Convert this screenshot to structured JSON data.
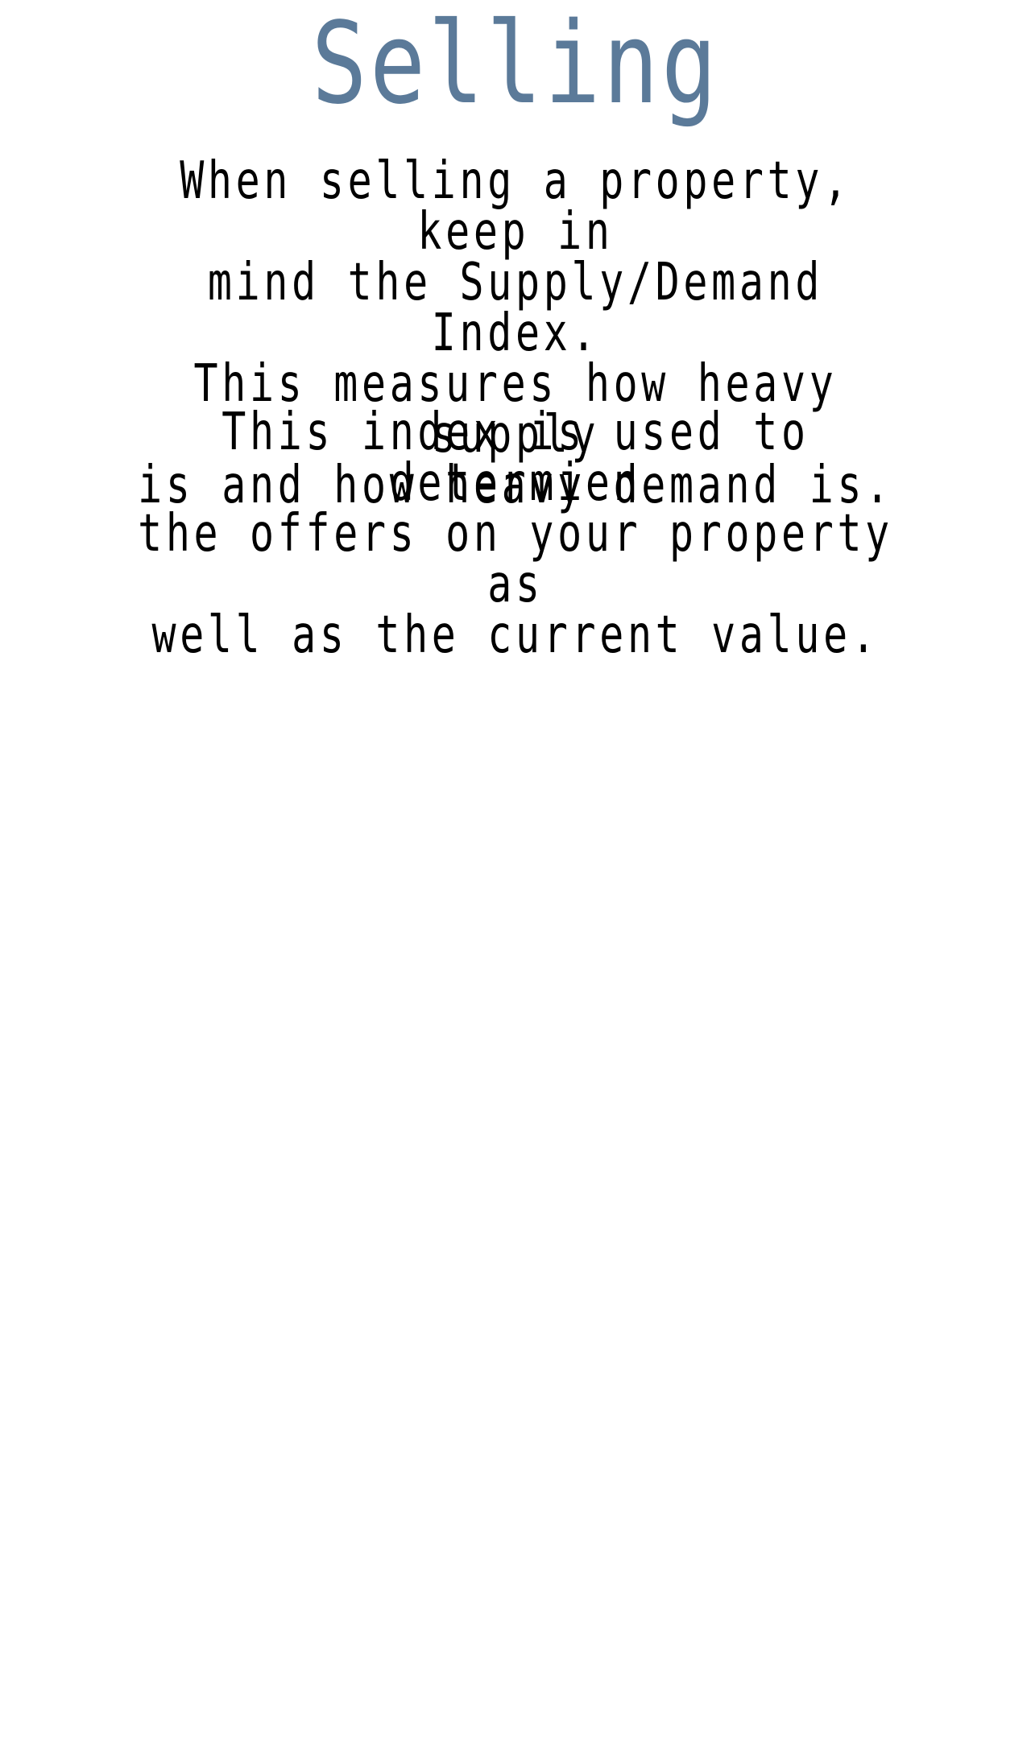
{
  "page": {
    "title": "Selling",
    "title_color": "#5b7a99",
    "paragraphs": [
      "When selling a property, keep in\nmind the Supply/Demand Index.\nThis measures how heavy supply\nis and how heavy demand is.",
      "This index is used to determien\nthe offers on your property as\nwell as the current value."
    ],
    "text_color": "#000000"
  }
}
